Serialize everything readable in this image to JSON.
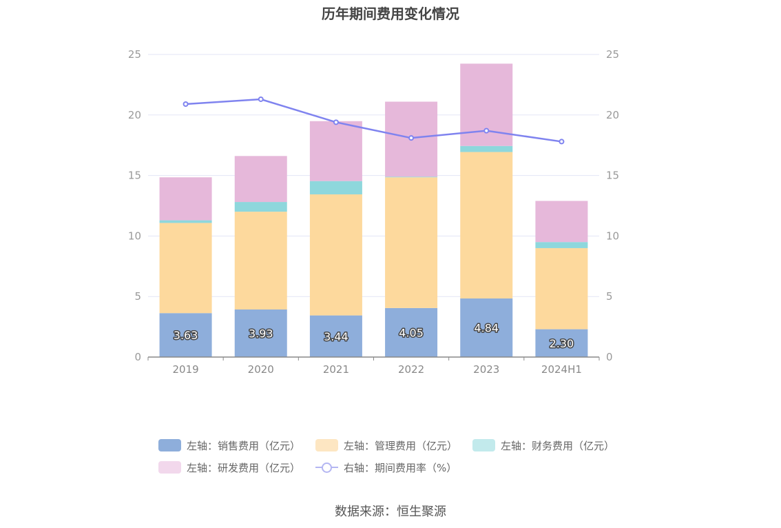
{
  "title": "历年期间费用变化情况",
  "source": "数据来源：恒生聚源",
  "chart_data": {
    "type": "bar",
    "stacked": true,
    "categories": [
      "2019",
      "2020",
      "2021",
      "2022",
      "2023",
      "2024H1"
    ],
    "left_axis": {
      "ylim": [
        0,
        25
      ],
      "ticks": [
        0,
        5,
        10,
        15,
        20,
        25
      ]
    },
    "right_axis": {
      "ylim": [
        0,
        25
      ],
      "ticks": [
        0,
        5,
        10,
        15,
        20,
        25
      ]
    },
    "grid": true,
    "legend_position": "bottom",
    "series": [
      {
        "name": "左轴：销售费用（亿元）",
        "axis": "left",
        "type": "bar",
        "color": "#8eaedb",
        "values": [
          3.63,
          3.93,
          3.44,
          4.05,
          4.84,
          2.3
        ],
        "labels": [
          "3.63",
          "3.93",
          "3.44",
          "4.05",
          "4.84",
          "2.30"
        ]
      },
      {
        "name": "左轴：管理费用（亿元）",
        "axis": "left",
        "type": "bar",
        "color": "#fdd99d",
        "values": [
          7.45,
          8.08,
          10.0,
          10.8,
          12.1,
          6.7
        ]
      },
      {
        "name": "左轴：财务费用（亿元）",
        "axis": "left",
        "type": "bar",
        "color": "#8ed7dc",
        "values": [
          0.22,
          0.8,
          1.1,
          0.05,
          0.5,
          0.5
        ]
      },
      {
        "name": "左轴：研发费用（亿元）",
        "axis": "left",
        "type": "bar",
        "color": "#e6b8da",
        "values": [
          3.55,
          3.8,
          4.95,
          6.2,
          6.8,
          3.4
        ]
      },
      {
        "name": "右轴：期间费用率（%）",
        "axis": "right",
        "type": "line",
        "color": "#7f83ef",
        "values": [
          20.9,
          21.3,
          19.4,
          18.1,
          18.7,
          17.8
        ]
      }
    ]
  }
}
